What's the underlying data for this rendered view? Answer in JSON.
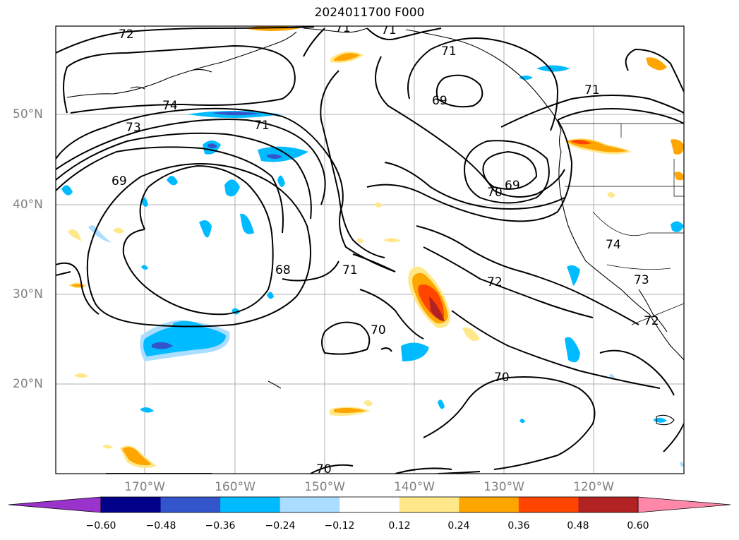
{
  "title": "2024011700 F000",
  "axes": {
    "lon_ticks": [
      "170°W",
      "160°W",
      "150°W",
      "140°W",
      "130°W",
      "120°W"
    ],
    "lat_ticks": [
      "50°N",
      "40°N",
      "30°N",
      "20°N"
    ],
    "extent": {
      "lon_min": -179.5,
      "lon_max": -109.5,
      "lat_min": 10,
      "lat_max": 59.8
    },
    "tick_color": "#808080"
  },
  "colorbar": {
    "ticks": [
      "−0.60",
      "−0.48",
      "−0.36",
      "−0.24",
      "−0.12",
      "0.12",
      "0.24",
      "0.36",
      "0.48",
      "0.60"
    ],
    "colors": [
      "#9933cc",
      "#000088",
      "#3355cc",
      "#00bbff",
      "#aaddff",
      "#ffffff",
      "#ffe88a",
      "#ffa500",
      "#ff4500",
      "#b22222",
      "#ff88aa"
    ],
    "extend": "both"
  },
  "contour_labels": [
    "72",
    "71",
    "71",
    "71",
    "74",
    "73",
    "71",
    "69",
    "69",
    "70",
    "69",
    "71",
    "71",
    "68",
    "74",
    "73",
    "72",
    "70",
    "72",
    "70",
    "70"
  ]
}
